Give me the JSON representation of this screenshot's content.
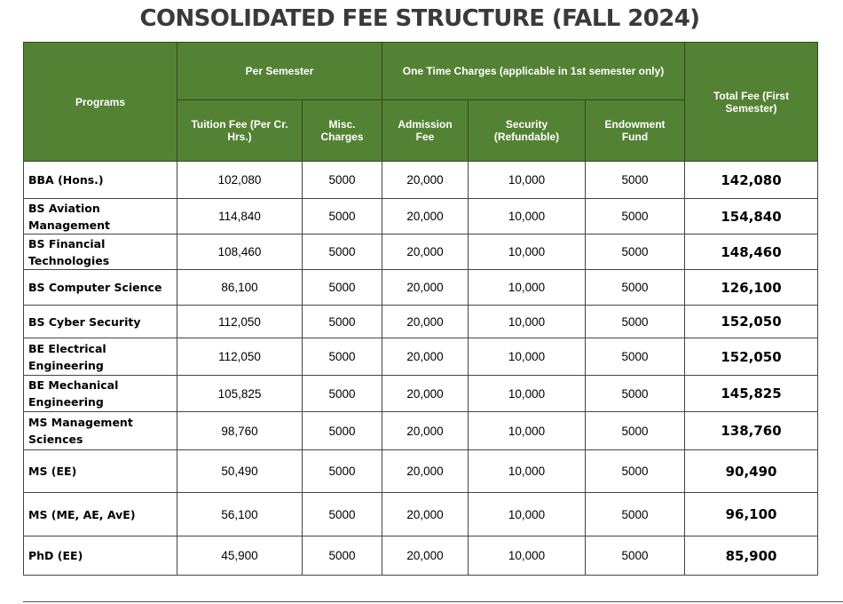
{
  "title": "CONSOLIDATED FEE STRUCTURE (FALL 2024)",
  "headers": {
    "programs": "Programs",
    "per_semester": "Per Semester",
    "one_time": "One Time Charges (applicable in 1st semester only)",
    "total": "Total Fee (First Semester)",
    "tuition": "Tuition Fee (Per Cr. Hrs.)",
    "misc": "Misc. Charges",
    "admission": "Admission Fee",
    "security": "Security (Refundable)",
    "endowment": "Endowment Fund"
  },
  "rows": [
    {
      "program": "BBA (Hons.)",
      "tuition": "102,080",
      "misc": "5000",
      "admission": "20,000",
      "security": "10,000",
      "endowment": "5000",
      "total": "142,080"
    },
    {
      "program": "BS Aviation Management",
      "tuition": "114,840",
      "misc": "5000",
      "admission": "20,000",
      "security": "10,000",
      "endowment": "5000",
      "total": "154,840"
    },
    {
      "program": "BS Financial Technologies",
      "tuition": "108,460",
      "misc": "5000",
      "admission": "20,000",
      "security": "10,000",
      "endowment": "5000",
      "total": "148,460"
    },
    {
      "program": "BS Computer Science",
      "tuition": "86,100",
      "misc": "5000",
      "admission": "20,000",
      "security": "10,000",
      "endowment": "5000",
      "total": "126,100"
    },
    {
      "program": "BS Cyber Security",
      "tuition": "112,050",
      "misc": "5000",
      "admission": "20,000",
      "security": "10,000",
      "endowment": "5000",
      "total": "152,050"
    },
    {
      "program": "BE Electrical Engineering",
      "tuition": "112,050",
      "misc": "5000",
      "admission": "20,000",
      "security": "10,000",
      "endowment": "5000",
      "total": "152,050"
    },
    {
      "program": "BE Mechanical Engineering",
      "tuition": "105,825",
      "misc": "5000",
      "admission": "20,000",
      "security": "10,000",
      "endowment": "5000",
      "total": "145,825"
    },
    {
      "program": "MS Management Sciences",
      "tuition": "98,760",
      "misc": "5000",
      "admission": "20,000",
      "security": "10,000",
      "endowment": "5000",
      "total": "138,760"
    },
    {
      "program": "MS (EE)",
      "tuition": "50,490",
      "misc": "5000",
      "admission": "20,000",
      "security": "10,000",
      "endowment": "5000",
      "total": "90,490"
    },
    {
      "program": "MS (ME, AE, AvE)",
      "tuition": "56,100",
      "misc": "5000",
      "admission": "20,000",
      "security": "10,000",
      "endowment": "5000",
      "total": "96,100"
    },
    {
      "program": "PhD (EE)",
      "tuition": "45,900",
      "misc": "5000",
      "admission": "20,000",
      "security": "10,000",
      "endowment": "5000",
      "total": "85,900"
    }
  ],
  "colors": {
    "header_bg": "#548235",
    "header_text": "#ffffff",
    "title_text": "#3a3a3a"
  }
}
